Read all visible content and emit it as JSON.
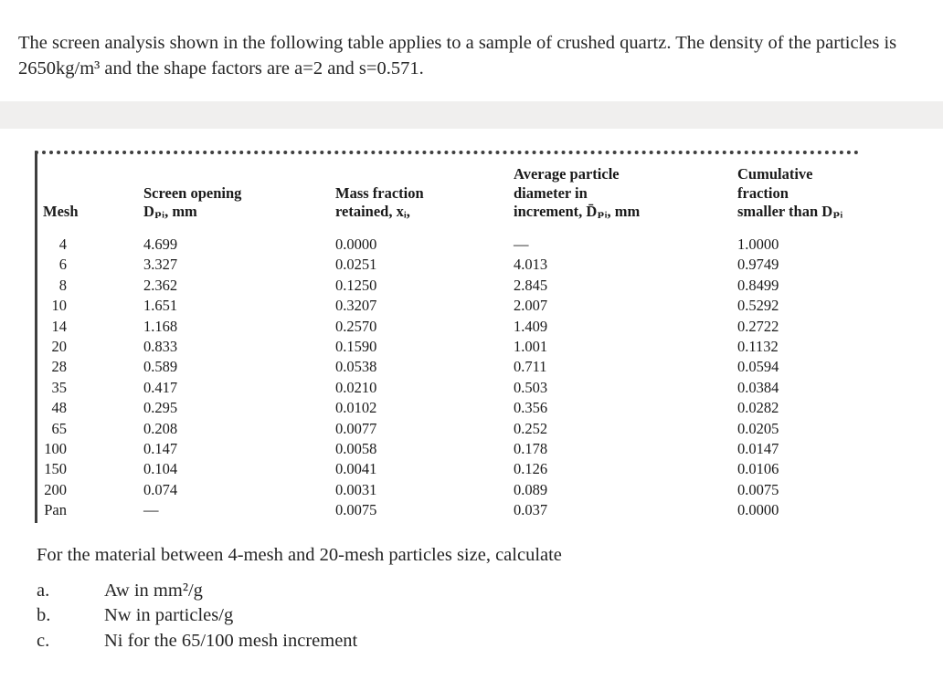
{
  "intro": {
    "text": "The screen analysis shown in the following table applies to a sample of crushed quartz. The density of the particles is 2650kg/m³ and the shape factors are a=2 and s=0.571."
  },
  "table": {
    "headers": [
      {
        "lines": [
          "Mesh"
        ]
      },
      {
        "lines": [
          "Screen opening",
          "Dₚᵢ, mm"
        ]
      },
      {
        "lines": [
          "Mass fraction",
          "retained, xᵢ,"
        ]
      },
      {
        "lines": [
          "Average particle",
          "diameter in",
          "increment, D̄ₚᵢ, mm"
        ]
      },
      {
        "lines": [
          "Cumulative",
          "fraction",
          "smaller than Dₚᵢ"
        ]
      }
    ],
    "rows": [
      [
        "4",
        "4.699",
        "0.0000",
        "—",
        "1.0000"
      ],
      [
        "6",
        "3.327",
        "0.0251",
        "4.013",
        "0.9749"
      ],
      [
        "8",
        "2.362",
        "0.1250",
        "2.845",
        "0.8499"
      ],
      [
        "10",
        "1.651",
        "0.3207",
        "2.007",
        "0.5292"
      ],
      [
        "14",
        "1.168",
        "0.2570",
        "1.409",
        "0.2722"
      ],
      [
        "20",
        "0.833",
        "0.1590",
        "1.001",
        "0.1132"
      ],
      [
        "28",
        "0.589",
        "0.0538",
        "0.711",
        "0.0594"
      ],
      [
        "35",
        "0.417",
        "0.0210",
        "0.503",
        "0.0384"
      ],
      [
        "48",
        "0.295",
        "0.0102",
        "0.356",
        "0.0282"
      ],
      [
        "65",
        "0.208",
        "0.0077",
        "0.252",
        "0.0205"
      ],
      [
        "100",
        "0.147",
        "0.0058",
        "0.178",
        "0.0147"
      ],
      [
        "150",
        "0.104",
        "0.0041",
        "0.126",
        "0.0106"
      ],
      [
        "200",
        "0.074",
        "0.0031",
        "0.089",
        "0.0075"
      ],
      [
        "Pan",
        "—",
        "0.0075",
        "0.037",
        "0.0000"
      ]
    ]
  },
  "question": {
    "prompt": "For the material between 4-mesh and 20-mesh particles size, calculate",
    "items": [
      {
        "label": "a.",
        "text": "Aw in mm²/g"
      },
      {
        "label": "b.",
        "text": "Nw in particles/g"
      },
      {
        "label": "c.",
        "text": "Ni for the 65/100 mesh increment"
      }
    ]
  }
}
